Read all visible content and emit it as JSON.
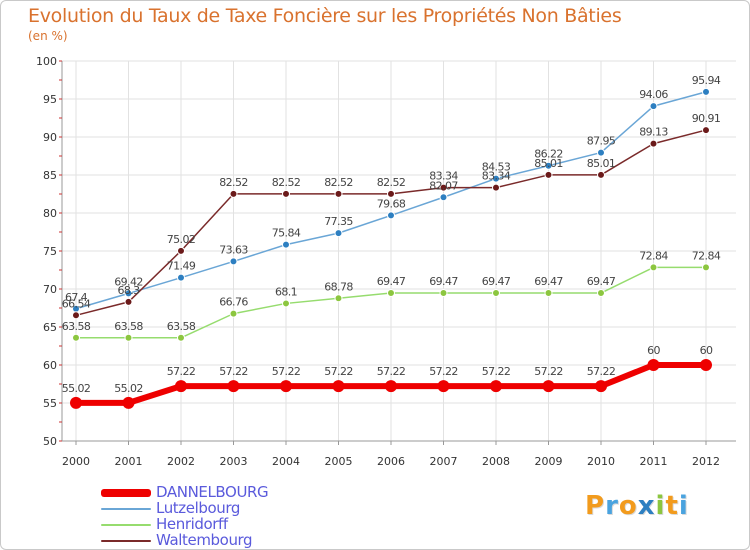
{
  "title": "Evolution du Taux de Taxe Foncière sur les Propriétés Non Bâties",
  "unit": "(en %)",
  "logo": {
    "letters": [
      "P",
      "r",
      "o",
      "x",
      "i",
      "t",
      "i"
    ],
    "colors": [
      "#f29b1d",
      "#4aa3df",
      "#f29b1d",
      "#2d7fc1",
      "#8cc63f",
      "#f29b1d",
      "#4aa3df"
    ]
  },
  "chart_data": {
    "type": "line",
    "title": "Evolution du Taux de Taxe Foncière sur les Propriétés Non Bâties",
    "ylabel": "(en %)",
    "xlabel": "",
    "x": [
      2000,
      2001,
      2002,
      2003,
      2004,
      2005,
      2006,
      2007,
      2008,
      2009,
      2010,
      2011,
      2012
    ],
    "x_labels": [
      "2000",
      "2001",
      "2002",
      "2003",
      "2004",
      "2005",
      "2006",
      "2007",
      "2008",
      "2009",
      "2010",
      "2011",
      "2012"
    ],
    "ylim": [
      50,
      100
    ],
    "yticks": [
      50,
      55,
      60,
      65,
      70,
      75,
      80,
      85,
      90,
      95,
      100
    ],
    "grid": true,
    "legend_position": "bottom-left",
    "series": [
      {
        "name": "DANNELBOURG",
        "color": "#ee0000",
        "values": [
          55.02,
          55.02,
          57.22,
          57.22,
          57.22,
          57.22,
          57.22,
          57.22,
          57.22,
          57.22,
          57.22,
          60,
          60
        ],
        "labels": [
          "55.02",
          "55.02",
          "57.22",
          "57.22",
          "57.22",
          "57.22",
          "57.22",
          "57.22",
          "57.22",
          "57.22",
          "57.22",
          "60",
          "60"
        ]
      },
      {
        "name": "Lutzelbourg",
        "color": "#6aa6d6",
        "values": [
          67.4,
          69.42,
          71.49,
          73.63,
          75.84,
          77.35,
          79.68,
          82.07,
          84.53,
          86.22,
          87.95,
          94.06,
          95.94
        ],
        "labels": [
          "67.4",
          "69.42",
          "71.49",
          "73.63",
          "75.84",
          "77.35",
          "79.68",
          "82.07",
          "84.53",
          "86.22",
          "87.95",
          "94.06",
          "95.94"
        ]
      },
      {
        "name": "Henridorff",
        "color": "#96dc6e",
        "values": [
          63.58,
          63.58,
          63.58,
          66.76,
          68.1,
          68.78,
          69.47,
          69.47,
          69.47,
          69.47,
          69.47,
          72.84,
          72.84
        ],
        "labels": [
          "63.58",
          "63.58",
          "63.58",
          "66.76",
          "68.1",
          "68.78",
          "69.47",
          "69.47",
          "69.47",
          "69.47",
          "69.47",
          "72.84",
          "72.84"
        ]
      },
      {
        "name": "Waltembourg",
        "color": "#7a2a2a",
        "values": [
          66.54,
          68.3,
          75.02,
          82.52,
          82.52,
          82.52,
          82.52,
          83.34,
          83.34,
          85.01,
          85.01,
          89.13,
          90.91
        ],
        "labels": [
          "66.54",
          "68.3",
          "75.02",
          "82.52",
          "82.52",
          "82.52",
          "82.52",
          "83.34",
          "83.34",
          "85.01",
          "85.01",
          "89.13",
          "90.91"
        ]
      }
    ]
  }
}
